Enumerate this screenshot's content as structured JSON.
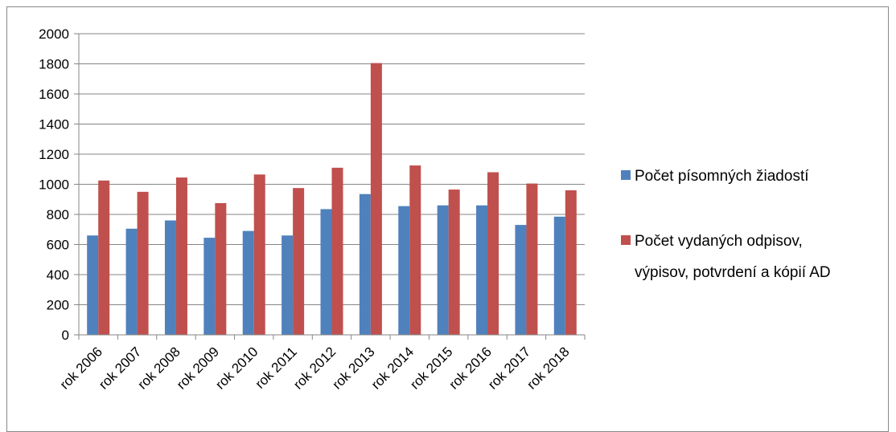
{
  "chart_data": {
    "type": "bar",
    "title": "",
    "xlabel": "",
    "ylabel": "",
    "ylim": [
      0,
      2000
    ],
    "yticks": [
      "0",
      "200",
      "400",
      "600",
      "800",
      "1000",
      "1200",
      "1400",
      "1600",
      "1800",
      "2000"
    ],
    "grid": true,
    "legend_position": "right",
    "categories": [
      "rok 2006",
      "rok 2007",
      "rok 2008",
      "rok 2009",
      "rok 2010",
      "rok 2011",
      "rok 2012",
      "rok 2013",
      "rok 2014",
      "rok 2015",
      "rok 2016",
      "rok 2017",
      "rok 2018"
    ],
    "series": [
      {
        "name": "Počet písomných žiadostí",
        "color": "#4f81bd",
        "values": [
          660,
          705,
          760,
          645,
          690,
          660,
          835,
          935,
          855,
          860,
          860,
          730,
          785
        ]
      },
      {
        "name": "Počet vydaných odpisov, výpisov, potvrdení a kópií AD",
        "color": "#c0504d",
        "values": [
          1025,
          950,
          1045,
          875,
          1065,
          975,
          1110,
          1805,
          1125,
          965,
          1080,
          1005,
          960
        ]
      }
    ],
    "legend": [
      {
        "lines": [
          "Počet písomných žiadostí"
        ]
      },
      {
        "lines": [
          "Počet vydaných odpisov,",
          "výpisov, potvrdení a kópií AD"
        ]
      }
    ]
  }
}
